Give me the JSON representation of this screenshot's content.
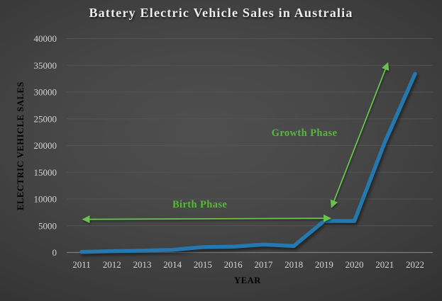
{
  "title": "Battery Electric Vehicle Sales in Australia",
  "chart_data": {
    "type": "line",
    "title": "Battery Electric Vehicle Sales in Australia",
    "x": [
      "2011",
      "2012",
      "2013",
      "2014",
      "2015",
      "2016",
      "2017",
      "2018",
      "2019",
      "2020",
      "2021",
      "2022"
    ],
    "series": [
      {
        "name": "Battery electric vehicle sales",
        "values": [
          100,
          250,
          350,
          500,
          1000,
          1100,
          1500,
          1200,
          5900,
          5900,
          20600,
          33400
        ]
      }
    ],
    "xlabel": "YEAR",
    "ylabel": "ELECTRIC VEHICLE SALES",
    "ylim": [
      0,
      40000
    ],
    "y_tick_step": 5000,
    "y_ticks": [
      "0",
      "5000",
      "10000",
      "15000",
      "20000",
      "25000",
      "30000",
      "35000",
      "40000"
    ],
    "grid": true,
    "legend": "none",
    "annotations": [
      {
        "label": "Birth Phase",
        "type": "double_headed_arrow",
        "from": {
          "year": 2011.05,
          "value": 6200
        },
        "to": {
          "year": 2019.2,
          "value": 6400
        },
        "label_pos": {
          "year": 2014.9,
          "value": 8400
        }
      },
      {
        "label": "Growth Phase",
        "type": "double_headed_arrow",
        "from": {
          "year": 2019.25,
          "value": 8500
        },
        "to": {
          "year": 2021.1,
          "value": 35400
        },
        "label_pos": {
          "year": 2018.35,
          "value": 21800
        }
      }
    ]
  },
  "colors": {
    "series_line": "#2478ad",
    "annotation_text": "#55b93a",
    "annotation_arrow": "#68c24d",
    "grid_line": "#545454",
    "axis_line": "#7d7d7d",
    "tick_text": "#d4d4d4",
    "title_text": "#ededed"
  }
}
